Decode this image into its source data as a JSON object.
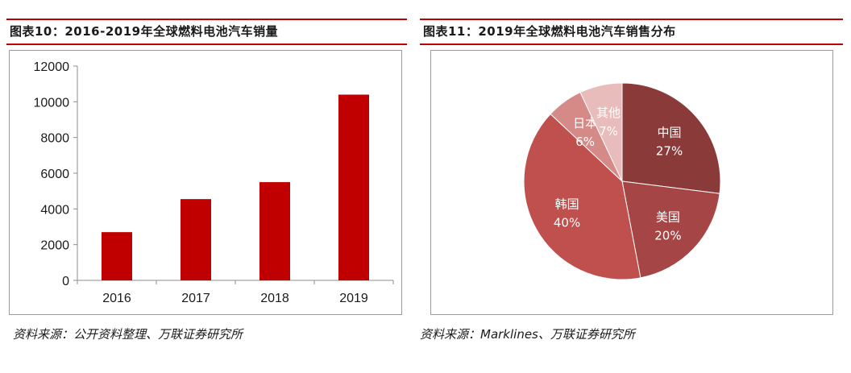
{
  "left_panel": {
    "title": "图表10：2016-2019年全球燃料电池汽车销量",
    "source": "资料来源：公开资料整理、万联证券研究所"
  },
  "right_panel": {
    "title": "图表11：2019年全球燃料电池汽车销售分布",
    "source": "资料来源：Marklines、万联证券研究所"
  },
  "colors": {
    "accent": "#c00000",
    "bar": "#c00000"
  },
  "chart_data": [
    {
      "type": "bar",
      "title": "",
      "xlabel": "",
      "ylabel": "",
      "categories": [
        "2016",
        "2017",
        "2018",
        "2019"
      ],
      "values": [
        2700,
        4550,
        5500,
        10400
      ],
      "ylim": [
        0,
        12000
      ],
      "yticks": [
        0,
        2000,
        4000,
        6000,
        8000,
        10000,
        12000
      ],
      "grid": false,
      "legend": "none"
    },
    {
      "type": "pie",
      "title": "",
      "slices": [
        {
          "label": "中国",
          "value": 27,
          "display": "27%",
          "color": "#8b3a3a"
        },
        {
          "label": "美国",
          "value": 20,
          "display": "20%",
          "color": "#a64545"
        },
        {
          "label": "韩国",
          "value": 40,
          "display": "40%",
          "color": "#c0504d"
        },
        {
          "label": "日本",
          "value": 6,
          "display": "6%",
          "color": "#d68a88"
        },
        {
          "label": "其他",
          "value": 7,
          "display": "7%",
          "color": "#e8bcbb"
        }
      ],
      "legend": "none"
    }
  ]
}
